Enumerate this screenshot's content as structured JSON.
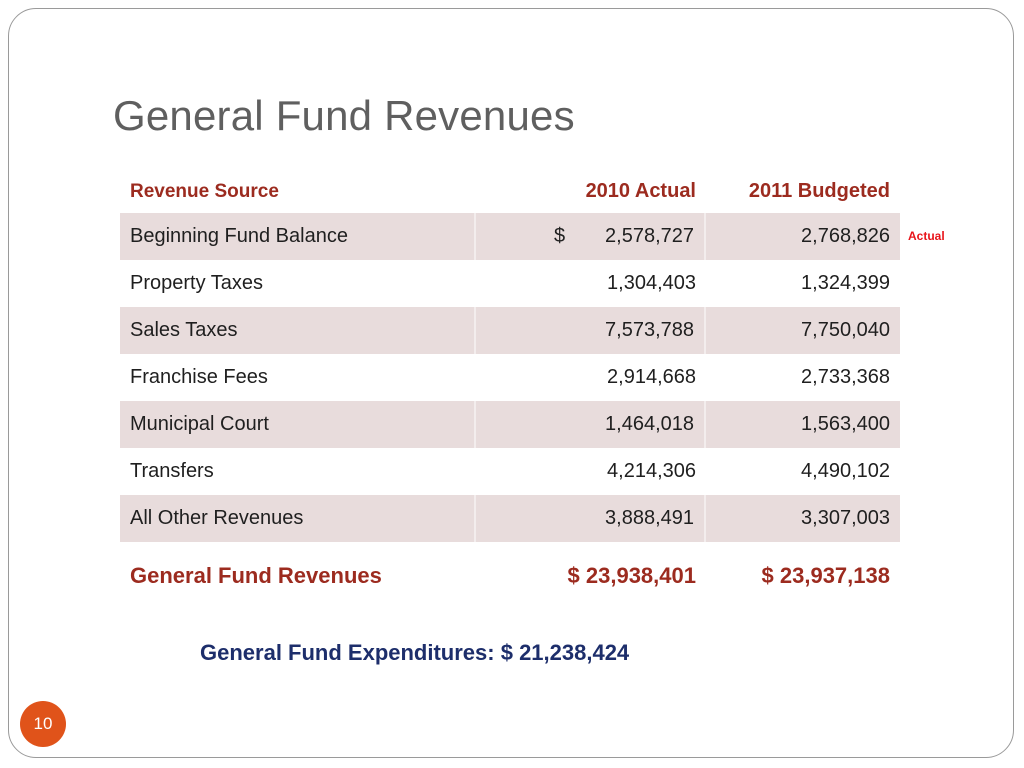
{
  "slide": {
    "title": "General Fund Revenues",
    "page_number": "10"
  },
  "table": {
    "headers": {
      "source": "Revenue Source",
      "actual_2010": "2010  Actual",
      "budgeted_2011": "2011  Budgeted"
    },
    "rows": [
      {
        "source": "Beginning Fund Balance",
        "currency": "$",
        "actual_2010": "2,578,727",
        "budgeted_2011": "2,768,826"
      },
      {
        "source": "Property Taxes",
        "currency": "",
        "actual_2010": "1,304,403",
        "budgeted_2011": "1,324,399"
      },
      {
        "source": "Sales Taxes",
        "currency": "",
        "actual_2010": "7,573,788",
        "budgeted_2011": "7,750,040"
      },
      {
        "source": "Franchise Fees",
        "currency": "",
        "actual_2010": "2,914,668",
        "budgeted_2011": "2,733,368"
      },
      {
        "source": "Municipal Court",
        "currency": "",
        "actual_2010": "1,464,018",
        "budgeted_2011": "1,563,400"
      },
      {
        "source": "Transfers",
        "currency": "",
        "actual_2010": "4,214,306",
        "budgeted_2011": "4,490,102"
      },
      {
        "source": "All Other Revenues",
        "currency": "",
        "actual_2010": "3,888,491",
        "budgeted_2011": "3,307,003"
      }
    ],
    "total": {
      "label": "General Fund Revenues",
      "actual_2010": "$ 23,938,401",
      "budgeted_2011": "$ 23,937,138"
    }
  },
  "annotation": "Actual",
  "expenditures": "General Fund Expenditures:  $ 21,238,424",
  "colors": {
    "header_red": "#9c2b1f",
    "row_shade": "#e8dcdc",
    "annotation_red": "#e8141a",
    "expenditure_navy": "#1d2e6b",
    "badge_orange": "#e0531a"
  }
}
